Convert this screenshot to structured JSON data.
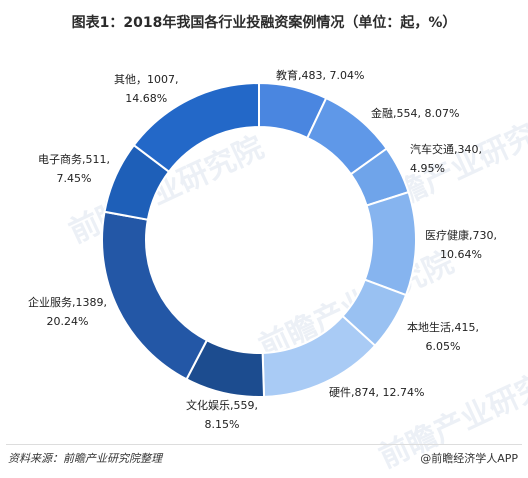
{
  "chart_data": {
    "type": "pie",
    "title": "图表1：2018年我国各行业投融资案例情况（单位：起，%）",
    "slices": [
      {
        "name": "教育",
        "value": 483,
        "percent": "7.04%",
        "color": "#4a86e0",
        "text": "教育,483, 7.04%"
      },
      {
        "name": "金融",
        "value": 554,
        "percent": "8.07%",
        "color": "#5f98e8",
        "text": "金融,554, 8.07%"
      },
      {
        "name": "汽车交通",
        "value": 340,
        "percent": "4.95%",
        "color": "#6fa4ea",
        "text": "汽车交通,340, 4.95%"
      },
      {
        "name": "医疗健康",
        "value": 730,
        "percent": "10.64%",
        "color": "#86b4ef",
        "text": "医疗健康,730, 10.64%"
      },
      {
        "name": "本地生活",
        "value": 415,
        "percent": "6.05%",
        "color": "#99c1f2",
        "text": "本地生活,415, 6.05%"
      },
      {
        "name": "硬件",
        "value": 874,
        "percent": "12.74%",
        "color": "#a9cbf5",
        "text": "硬件,874, 12.74%"
      },
      {
        "name": "文化娱乐",
        "value": 559,
        "percent": "8.15%",
        "color": "#1c4c8f",
        "text": "文化娱乐,559, 8.15%"
      },
      {
        "name": "企业服务",
        "value": 1389,
        "percent": "20.24%",
        "color": "#2357a6",
        "text": "企业服务,1389, 20.24%"
      },
      {
        "name": "电子商务",
        "value": 511,
        "percent": "7.45%",
        "color": "#1e5fb8",
        "text": "电子商务,511, 7.45%"
      },
      {
        "name": "其他",
        "value": 1007,
        "percent": "14.68%",
        "color": "#2368c8",
        "text": "其他，1007, 14.68%"
      }
    ]
  },
  "labels": {
    "edu": [
      "教育,483, 7.04%"
    ],
    "fin": [
      "金融,554, 8.07%"
    ],
    "auto": [
      "汽车交通,340,",
      "4.95%"
    ],
    "med": [
      "医疗健康,730,",
      "10.64%"
    ],
    "local": [
      "本地生活,415,",
      "6.05%"
    ],
    "hw": [
      "硬件,874, 12.74%"
    ],
    "ent": [
      "文化娱乐,559,",
      "8.15%"
    ],
    "biz": [
      "企业服务,1389,",
      "20.24%"
    ],
    "ecom": [
      "电子商务,511,",
      "7.45%"
    ],
    "other": [
      "其他，1007,",
      "14.68%"
    ]
  },
  "footer": {
    "source": "资料来源：前瞻产业研究院整理",
    "brand": "@前瞻经济学人APP"
  },
  "watermark": "前瞻产业研究院"
}
